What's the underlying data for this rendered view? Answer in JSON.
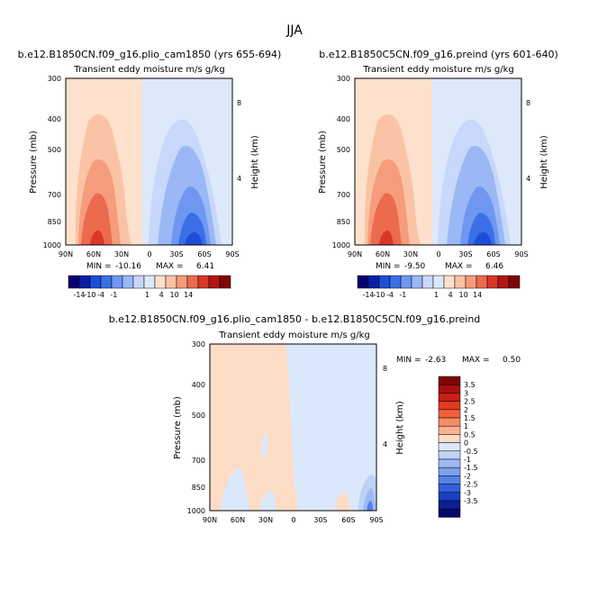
{
  "page": {
    "title": "JJA"
  },
  "chart_data": [
    {
      "type": "contour",
      "title": "b.e12.B1850CN.f09_g16.plio_cam1850 (yrs 655-694)",
      "subtitle": "Transient eddy moisture m/s g/kg",
      "ylabel": "Pressure (mb)",
      "ylabel_right": "Height (km)",
      "x_ticks": [
        "90N",
        "60N",
        "30N",
        "0",
        "30S",
        "60S",
        "90S"
      ],
      "y_ticks": [
        "300",
        "400",
        "500",
        "700",
        "850",
        "1000"
      ],
      "y_ticks_right": [
        "8",
        "4"
      ],
      "stats": {
        "min_label": "MIN =",
        "min": "-10.16",
        "max_label": "MAX =",
        "max": "6.41"
      },
      "colorbar": [
        "-14",
        "-10",
        "-4",
        "-1",
        "1",
        "4",
        "10",
        "14"
      ]
    },
    {
      "type": "contour",
      "title": "b.e12.B1850C5CN.f09_g16.preind (yrs 601-640)",
      "subtitle": "Transient eddy moisture m/s g/kg",
      "ylabel": "Pressure (mb)",
      "ylabel_right": "Height (km)",
      "x_ticks": [
        "90N",
        "60N",
        "30N",
        "0",
        "30S",
        "60S",
        "90S"
      ],
      "y_ticks": [
        "300",
        "400",
        "500",
        "700",
        "850",
        "1000"
      ],
      "y_ticks_right": [
        "8",
        "4"
      ],
      "stats": {
        "min_label": "MIN =",
        "min": "-9.50",
        "max_label": "MAX =",
        "max": "6.46"
      },
      "colorbar": [
        "-14",
        "-10",
        "-4",
        "-1",
        "1",
        "4",
        "10",
        "14"
      ]
    },
    {
      "type": "contour",
      "title": "b.e12.B1850CN.f09_g16.plio_cam1850 - b.e12.B1850C5CN.f09_g16.preind",
      "subtitle": "Transient eddy moisture m/s g/kg",
      "ylabel": "Pressure (mb)",
      "ylabel_right": "Height (km)",
      "x_ticks": [
        "90N",
        "60N",
        "30N",
        "0",
        "30S",
        "60S",
        "90S"
      ],
      "y_ticks": [
        "300",
        "400",
        "500",
        "700",
        "850",
        "1000"
      ],
      "y_ticks_right": [
        "8",
        "4"
      ],
      "stats": {
        "min_label": "MIN =",
        "min": "-2.63",
        "max_label": "MAX =",
        "max": "0.50"
      },
      "colorbar": [
        "3.5",
        "3",
        "2.5",
        "2",
        "1.5",
        "1",
        "0.5",
        "0",
        "-0.5",
        "-1",
        "-1.5",
        "-2",
        "-2.5",
        "-3",
        "-3.5"
      ]
    }
  ],
  "colors": {
    "scale_a": [
      "#08006e",
      "#0b1fa5",
      "#1d4ed8",
      "#3b6fe8",
      "#6f97f2",
      "#9bb8f6",
      "#c7d8fa",
      "#dde8fb",
      "#fde1cc",
      "#fbc3a6",
      "#f59c7c",
      "#ec6a4d",
      "#d9372a",
      "#b31515",
      "#7d0606"
    ],
    "scale_b": [
      "#7d0606",
      "#a70f0f",
      "#c81e16",
      "#e33a20",
      "#f2603b",
      "#f78b63",
      "#fbb08f",
      "#fddcc6",
      "#dbe8fb",
      "#bed2f7",
      "#9db9f4",
      "#7ba0ef",
      "#5582e8",
      "#2f5fd9",
      "#1a3fc4",
      "#0d1f94",
      "#06086a"
    ]
  }
}
